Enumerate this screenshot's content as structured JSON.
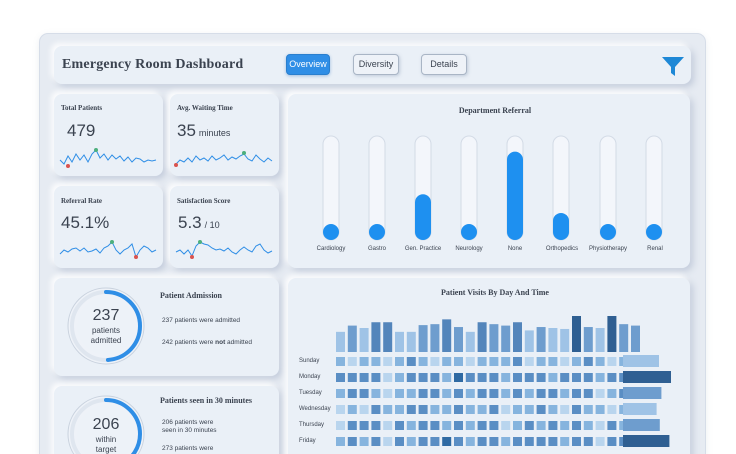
{
  "header": {
    "title": "Emergency Room Dashboard",
    "tabs": [
      {
        "label": "Overview",
        "active": true
      },
      {
        "label": "Diversity",
        "active": false
      },
      {
        "label": "Details",
        "active": false
      }
    ],
    "filter_icon": "filter-funnel-icon",
    "accent": "#2f8ee6"
  },
  "kpis": {
    "total_patients": {
      "title": "Total Patients",
      "value": "479"
    },
    "avg_wait": {
      "title": "Avg. Waiting Time",
      "value": "35",
      "unit": "minutes"
    },
    "referral_rate": {
      "title": "Referral Rate",
      "value": "45.1%"
    },
    "satisfaction": {
      "title": "Satisfaction Score",
      "value": "5.3",
      "unit": "/ 10"
    }
  },
  "department_referral": {
    "title": "Department Referral",
    "departments": [
      {
        "name": "Cardiology",
        "level": 0.12
      },
      {
        "name": "Gastro",
        "level": 0.11
      },
      {
        "name": "Gen. Practice",
        "level": 0.44
      },
      {
        "name": "Neurology",
        "level": 0.12
      },
      {
        "name": "None",
        "level": 0.85
      },
      {
        "name": "Orthopedics",
        "level": 0.26
      },
      {
        "name": "Physiotherapy",
        "level": 0.11
      },
      {
        "name": "Renal",
        "level": 0.1
      }
    ]
  },
  "admission": {
    "title": "Patient Admission",
    "gauge_value": "237",
    "gauge_line1": "patients",
    "gauge_line2": "admitted",
    "gauge_fraction": 0.49,
    "note_admitted": "237 patients were admitted",
    "note_not_prefix": "242 patients were ",
    "note_not_bold": "not",
    "note_not_suffix": " admitted"
  },
  "seen_30": {
    "title": "Patients seen in 30 minutes",
    "gauge_value": "206",
    "gauge_line1": "within",
    "gauge_line2": "target",
    "gauge_fraction": 0.43,
    "note_within_1": "206 patients were",
    "note_within_2": "seen in 30 minutes",
    "note_outside": "273 patients were"
  },
  "visits": {
    "title": "Patient Visits By Day And Time",
    "days": [
      "Sunday",
      "Monday",
      "Tuesday",
      "Wednesday",
      "Thursday",
      "Friday"
    ],
    "column_totals": [
      0.42,
      0.55,
      0.5,
      0.62,
      0.62,
      0.42,
      0.42,
      0.56,
      0.58,
      0.68,
      0.52,
      0.42,
      0.62,
      0.58,
      0.55,
      0.62,
      0.45,
      0.52,
      0.5,
      0.48,
      0.75,
      0.52,
      0.5,
      0.75,
      0.58,
      0.55
    ],
    "day_totals": [
      0.45,
      0.6,
      0.48,
      0.42,
      0.46,
      0.58
    ],
    "heat": [
      [
        2,
        1,
        2,
        2,
        1,
        2,
        3,
        2,
        1,
        2,
        2,
        1,
        2,
        2,
        2,
        3,
        1,
        2,
        2,
        1,
        2,
        3,
        2,
        1,
        2,
        2
      ],
      [
        3,
        3,
        3,
        3,
        1,
        2,
        3,
        3,
        3,
        2,
        4,
        3,
        3,
        3,
        2,
        3,
        3,
        3,
        2,
        3,
        3,
        3,
        2,
        3,
        3,
        3
      ],
      [
        2,
        3,
        3,
        2,
        1,
        2,
        2,
        3,
        3,
        2,
        3,
        2,
        3,
        3,
        2,
        3,
        2,
        3,
        3,
        2,
        3,
        3,
        1,
        2,
        3,
        2
      ],
      [
        1,
        2,
        1,
        3,
        2,
        2,
        3,
        3,
        2,
        2,
        3,
        2,
        2,
        3,
        1,
        2,
        2,
        3,
        2,
        1,
        3,
        2,
        2,
        1,
        2,
        2
      ],
      [
        1,
        3,
        3,
        3,
        1,
        3,
        2,
        3,
        3,
        2,
        3,
        2,
        3,
        3,
        1,
        2,
        3,
        2,
        3,
        2,
        3,
        2,
        1,
        3,
        2,
        3
      ],
      [
        2,
        3,
        2,
        3,
        1,
        3,
        2,
        3,
        3,
        4,
        3,
        2,
        3,
        3,
        2,
        3,
        3,
        3,
        3,
        2,
        3,
        3,
        1,
        3,
        3,
        3
      ]
    ]
  }
}
